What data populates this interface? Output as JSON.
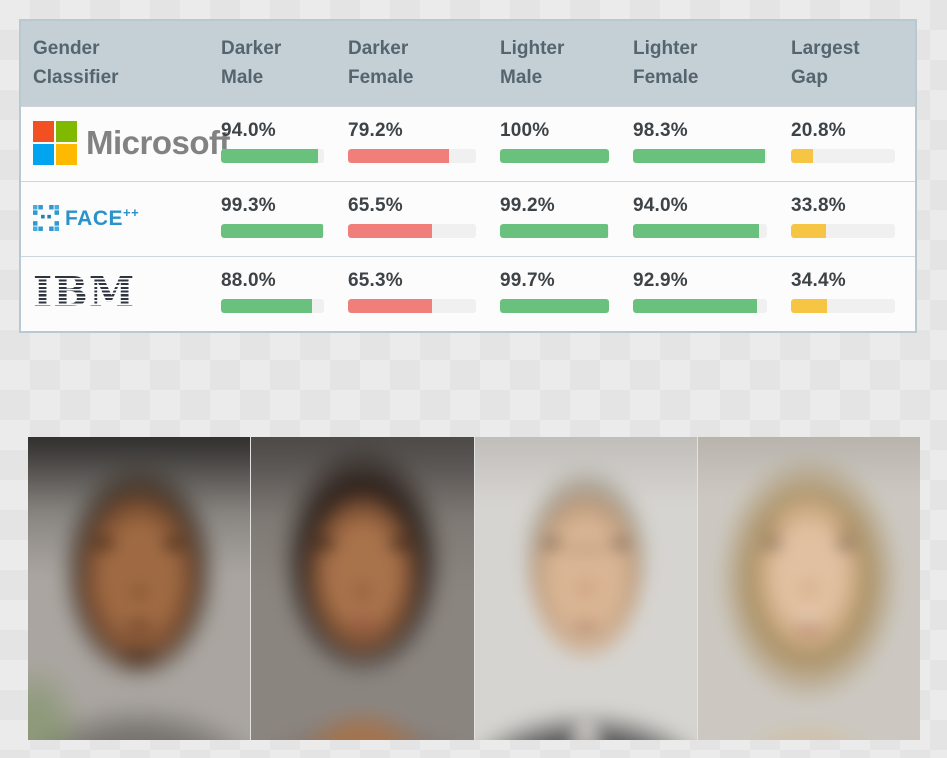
{
  "table": {
    "headers": [
      "Gender\nClassifier",
      "Darker\nMale",
      "Darker\nFemale",
      "Lighter\nMale",
      "Lighter\nFemale",
      "Largest\nGap"
    ],
    "rows": [
      {
        "company": "Microsoft",
        "cells": [
          {
            "label": "94.0%",
            "pct": 94,
            "color": "green"
          },
          {
            "label": "79.2%",
            "pct": 79.2,
            "color": "red"
          },
          {
            "label": "100%",
            "pct": 100,
            "color": "green"
          },
          {
            "label": "98.3%",
            "pct": 98.3,
            "color": "green"
          },
          {
            "label": "20.8%",
            "pct": 20.8,
            "color": "yellow"
          }
        ]
      },
      {
        "company": "Face++",
        "cells": [
          {
            "label": "99.3%",
            "pct": 99.3,
            "color": "green"
          },
          {
            "label": "65.5%",
            "pct": 65.5,
            "color": "red"
          },
          {
            "label": "99.2%",
            "pct": 99.2,
            "color": "green"
          },
          {
            "label": "94.0%",
            "pct": 94,
            "color": "green"
          },
          {
            "label": "33.8%",
            "pct": 33.8,
            "color": "yellow"
          }
        ]
      },
      {
        "company": "IBM",
        "cells": [
          {
            "label": "88.0%",
            "pct": 88,
            "color": "green"
          },
          {
            "label": "65.3%",
            "pct": 65.3,
            "color": "red"
          },
          {
            "label": "99.7%",
            "pct": 99.7,
            "color": "green"
          },
          {
            "label": "92.9%",
            "pct": 92.9,
            "color": "green"
          },
          {
            "label": "34.4%",
            "pct": 34.4,
            "color": "yellow"
          }
        ]
      }
    ]
  },
  "logos": {
    "microsoft": {
      "text": "Microsoft",
      "square_colors": {
        "red": "#f25022",
        "green": "#7fba00",
        "blue": "#00a4ef",
        "yellow": "#ffb900"
      }
    },
    "facepp": {
      "text": "FACE",
      "superscript": "++",
      "color": "#2a93c9"
    },
    "ibm": {
      "text": "IBM",
      "color": "#2f3540"
    }
  },
  "colors": {
    "bar_green": "#69c17d",
    "bar_red": "#f07f7c",
    "bar_yellow": "#f6c544",
    "bar_track": "#f0f0f0",
    "header_bg": "#c5cfd6",
    "header_text": "#55656f",
    "value_text": "#3e4347"
  },
  "faces": [
    {
      "name": "average-face-darker-male"
    },
    {
      "name": "average-face-darker-female"
    },
    {
      "name": "average-face-lighter-male"
    },
    {
      "name": "average-face-lighter-female"
    }
  ],
  "chart_data": {
    "type": "table",
    "title": "Gender Classifier accuracy by demographic group",
    "categories": [
      "Darker Male",
      "Darker Female",
      "Lighter Male",
      "Lighter Female",
      "Largest Gap"
    ],
    "series": [
      {
        "name": "Microsoft",
        "values": [
          94.0,
          79.2,
          100,
          98.3,
          20.8
        ]
      },
      {
        "name": "Face++",
        "values": [
          99.3,
          65.5,
          99.2,
          94.0,
          33.8
        ]
      },
      {
        "name": "IBM",
        "values": [
          88.0,
          65.3,
          99.7,
          92.9,
          34.4
        ]
      }
    ],
    "value_range": [
      0,
      100
    ],
    "units": "%"
  }
}
